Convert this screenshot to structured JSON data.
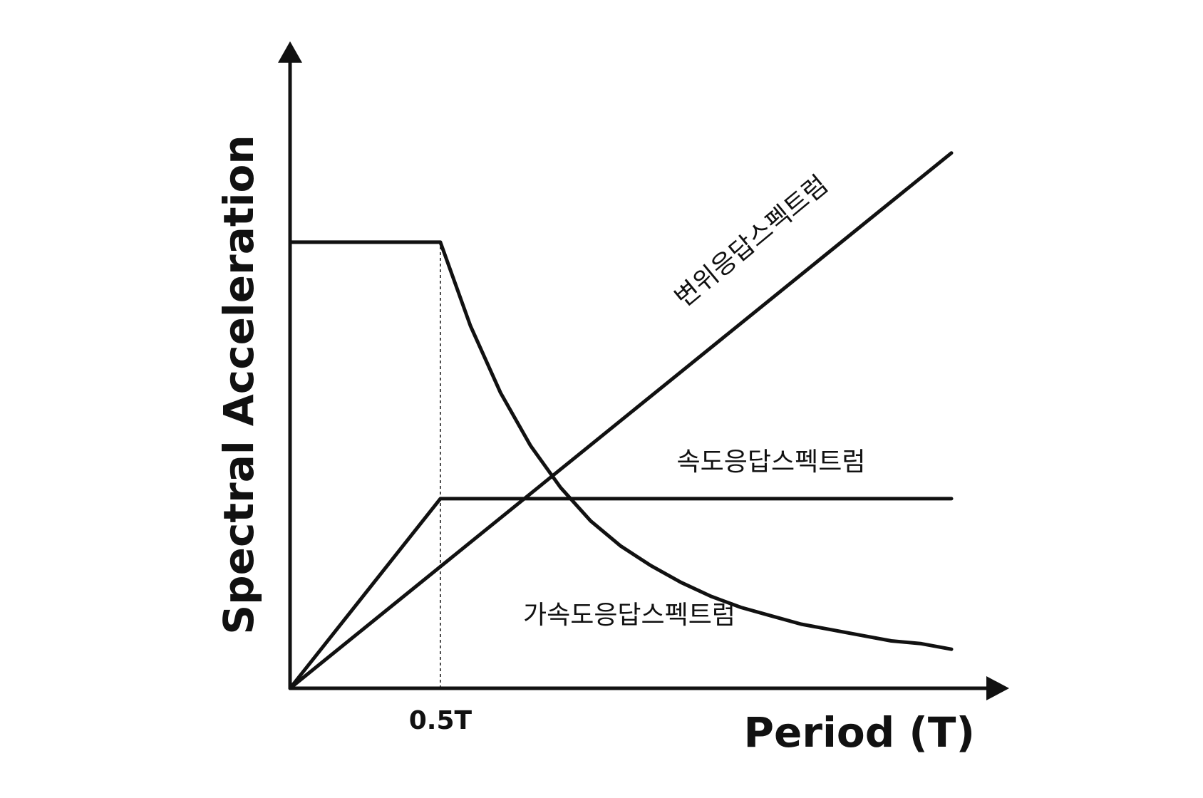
{
  "chart_data": {
    "type": "line",
    "title": "",
    "xlabel": "Period (T)",
    "ylabel": "Spectral Acceleration",
    "grid": false,
    "legend": "none",
    "x_ticks": [
      {
        "value": 0.5,
        "label": "0.5T"
      }
    ],
    "xlim": [
      0,
      2.2
    ],
    "ylim": [
      0,
      2.3
    ],
    "reference_lines": [
      {
        "type": "vertical",
        "x": 0.5,
        "style": "dotted"
      }
    ],
    "series": [
      {
        "name": "가속도응답스펙트럼",
        "x": [
          0,
          0.5,
          0.6,
          0.7,
          0.8,
          0.9,
          1.0,
          1.1,
          1.2,
          1.3,
          1.4,
          1.5,
          1.6,
          1.7,
          1.8,
          1.9,
          2.0,
          2.1,
          2.2
        ],
        "y": [
          1.6,
          1.6,
          1.3,
          1.06,
          0.87,
          0.72,
          0.6,
          0.51,
          0.44,
          0.38,
          0.33,
          0.29,
          0.26,
          0.23,
          0.21,
          0.19,
          0.17,
          0.16,
          0.14
        ]
      },
      {
        "name": "속도응답스펙트럼",
        "x": [
          0,
          0.5,
          2.2
        ],
        "y": [
          0,
          0.68,
          0.68
        ]
      },
      {
        "name": "변위응답스펙트럼",
        "x": [
          0,
          2.2
        ],
        "y": [
          0,
          1.92
        ]
      }
    ],
    "colors": {
      "line": "#111111",
      "axis": "#111111",
      "background": "#ffffff"
    }
  }
}
